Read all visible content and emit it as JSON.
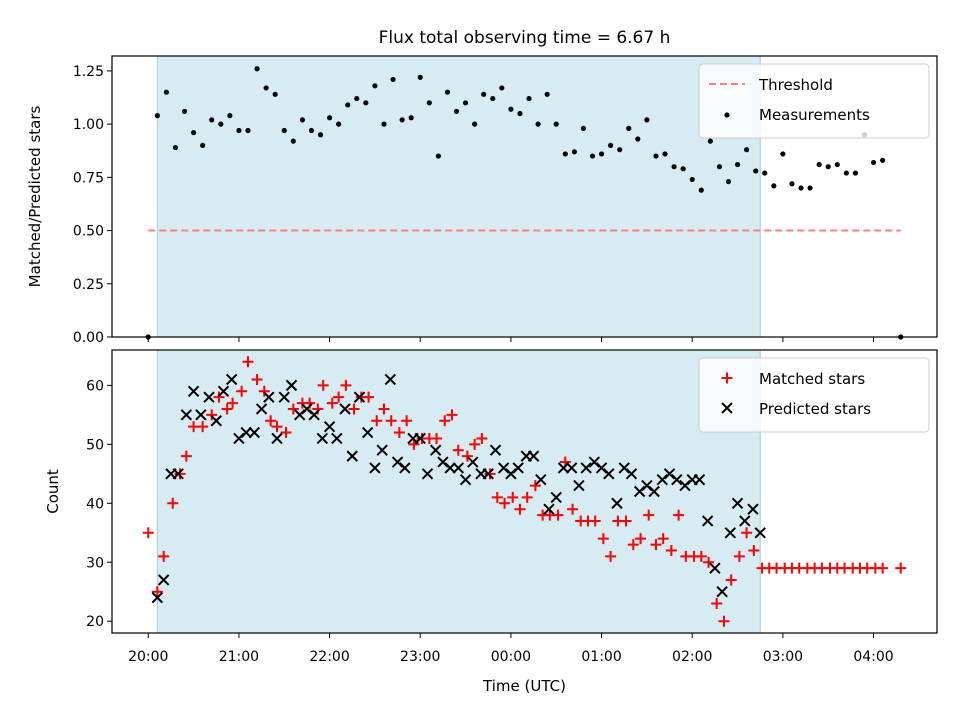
{
  "title": "Flux total observing time = 6.67 h",
  "chart_data": [
    {
      "type": "scatter",
      "ylabel": "Matched/Predicted stars",
      "ylim": [
        0,
        1.32
      ],
      "xlim_hours": [
        19.6,
        28.7
      ],
      "yticks": [
        0,
        0.25,
        0.5,
        0.75,
        1.0,
        1.25
      ],
      "ytick_labels": [
        "0.00",
        "0.25",
        "0.50",
        "0.75",
        "1.00",
        "1.25"
      ],
      "shaded_span_hours": [
        20.1,
        26.75
      ],
      "threshold": {
        "name": "Threshold",
        "value": 0.5,
        "x_range_hours": [
          20.0,
          28.3
        ],
        "color": "#ff7f7f"
      },
      "legend_position": "top-right",
      "series": [
        {
          "name": "Measurements",
          "color": "#000000",
          "marker": "dot",
          "x": [
            20.0,
            20.1,
            20.2,
            20.3,
            20.4,
            20.5,
            20.6,
            20.7,
            20.8,
            20.9,
            21.0,
            21.1,
            21.2,
            21.3,
            21.4,
            21.5,
            21.6,
            21.7,
            21.8,
            21.9,
            22.0,
            22.1,
            22.2,
            22.3,
            22.4,
            22.5,
            22.6,
            22.7,
            22.8,
            22.9,
            23.0,
            23.1,
            23.2,
            23.3,
            23.4,
            23.5,
            23.6,
            23.7,
            23.8,
            23.9,
            24.0,
            24.1,
            24.2,
            24.3,
            24.4,
            24.5,
            24.6,
            24.7,
            24.8,
            24.9,
            25.0,
            25.1,
            25.2,
            25.3,
            25.4,
            25.5,
            25.6,
            25.7,
            25.8,
            25.9,
            26.0,
            26.1,
            26.2,
            26.3,
            26.4,
            26.5,
            26.6,
            26.7,
            26.8,
            26.9,
            27.0,
            27.1,
            27.2,
            27.3,
            27.4,
            27.5,
            27.6,
            27.7,
            27.8,
            27.9,
            28.0,
            28.1,
            28.3
          ],
          "y": [
            0.0,
            1.04,
            1.15,
            0.89,
            1.06,
            0.96,
            0.9,
            1.02,
            1.0,
            1.04,
            0.97,
            0.97,
            1.26,
            1.17,
            1.14,
            0.97,
            0.92,
            1.02,
            0.97,
            0.95,
            1.03,
            1.0,
            1.09,
            1.12,
            1.1,
            1.18,
            1.0,
            1.21,
            1.02,
            1.03,
            1.22,
            1.1,
            0.85,
            1.15,
            1.06,
            1.1,
            1.0,
            1.14,
            1.12,
            1.17,
            1.07,
            1.05,
            1.12,
            1.0,
            1.14,
            1.0,
            0.86,
            0.87,
            0.98,
            0.85,
            0.86,
            0.9,
            0.88,
            0.98,
            0.93,
            1.02,
            0.85,
            0.86,
            0.8,
            0.79,
            0.74,
            0.69,
            0.92,
            0.8,
            0.73,
            0.81,
            0.88,
            0.78,
            0.77,
            0.71,
            0.86,
            0.72,
            0.7,
            0.7,
            0.81,
            0.8,
            0.81,
            0.77,
            0.77,
            0.95,
            0.82,
            0.83,
            0.0
          ]
        }
      ]
    },
    {
      "type": "scatter",
      "xlabel": "Time (UTC)",
      "ylabel": "Count",
      "ylim": [
        18,
        66
      ],
      "xlim_hours": [
        19.6,
        28.7
      ],
      "yticks": [
        20,
        30,
        40,
        50,
        60
      ],
      "ytick_labels": [
        "20",
        "30",
        "40",
        "50",
        "60"
      ],
      "xticks_hours": [
        20,
        21,
        22,
        23,
        24,
        25,
        26,
        27,
        28
      ],
      "xtick_labels": [
        "20:00",
        "21:00",
        "22:00",
        "23:00",
        "00:00",
        "01:00",
        "02:00",
        "03:00",
        "04:00"
      ],
      "shaded_span_hours": [
        20.1,
        26.75
      ],
      "legend_position": "top-right",
      "series": [
        {
          "name": "Matched stars",
          "color": "#ff0000",
          "marker": "plus",
          "x": [
            20.0,
            20.1,
            20.17,
            20.27,
            20.35,
            20.42,
            20.5,
            20.6,
            20.7,
            20.78,
            20.87,
            20.93,
            21.03,
            21.1,
            21.2,
            21.28,
            21.35,
            21.42,
            21.52,
            21.6,
            21.7,
            21.78,
            21.87,
            21.93,
            22.03,
            22.1,
            22.18,
            22.27,
            22.35,
            22.43,
            22.52,
            22.6,
            22.68,
            22.77,
            22.85,
            22.93,
            23.02,
            23.1,
            23.18,
            23.27,
            23.35,
            23.42,
            23.52,
            23.6,
            23.68,
            23.77,
            23.85,
            23.93,
            24.02,
            24.1,
            24.18,
            24.27,
            24.35,
            24.43,
            24.52,
            24.6,
            24.68,
            24.77,
            24.85,
            24.93,
            25.02,
            25.1,
            25.18,
            25.27,
            25.35,
            25.43,
            25.52,
            25.6,
            25.68,
            25.77,
            25.85,
            25.93,
            26.02,
            26.1,
            26.18,
            26.27,
            26.35,
            26.43,
            26.52,
            26.6,
            26.68,
            26.77,
            26.85,
            26.93,
            27.02,
            27.1,
            27.18,
            27.27,
            27.35,
            27.43,
            27.52,
            27.6,
            27.68,
            27.77,
            27.85,
            27.93,
            28.02,
            28.1,
            28.3
          ],
          "y": [
            35,
            25,
            31,
            40,
            45,
            48,
            53,
            53,
            55,
            58,
            56,
            57,
            59,
            64,
            61,
            59,
            54,
            53,
            52,
            56,
            57,
            57,
            56,
            60,
            57,
            58,
            60,
            56,
            58,
            58,
            54,
            56,
            54,
            52,
            54,
            50,
            51,
            51,
            51,
            54,
            55,
            49,
            48,
            50,
            51,
            45,
            41,
            40,
            41,
            39,
            41,
            43,
            38,
            38,
            38,
            47,
            39,
            37,
            37,
            37,
            34,
            31,
            37,
            37,
            33,
            34,
            38,
            33,
            34,
            32,
            38,
            31,
            31,
            31,
            30,
            23,
            20,
            27,
            31,
            35,
            32,
            29,
            29,
            29,
            29,
            29,
            29,
            29,
            29,
            29,
            29,
            29,
            29,
            29,
            29,
            29,
            29,
            29,
            29
          ]
        },
        {
          "name": "Predicted stars",
          "color": "#000000",
          "marker": "x",
          "x": [
            20.1,
            20.17,
            20.25,
            20.33,
            20.42,
            20.5,
            20.58,
            20.67,
            20.75,
            20.83,
            20.92,
            21.0,
            21.08,
            21.17,
            21.25,
            21.33,
            21.42,
            21.5,
            21.58,
            21.67,
            21.75,
            21.83,
            21.92,
            22.0,
            22.08,
            22.17,
            22.25,
            22.33,
            22.42,
            22.5,
            22.58,
            22.67,
            22.75,
            22.83,
            22.92,
            23.0,
            23.08,
            23.17,
            23.25,
            23.33,
            23.42,
            23.5,
            23.58,
            23.67,
            23.75,
            23.83,
            23.92,
            24.0,
            24.08,
            24.17,
            24.25,
            24.33,
            24.42,
            24.5,
            24.58,
            24.67,
            24.75,
            24.83,
            24.92,
            25.0,
            25.08,
            25.17,
            25.25,
            25.33,
            25.42,
            25.5,
            25.58,
            25.67,
            25.75,
            25.83,
            25.92,
            26.0,
            26.08,
            26.17,
            26.25,
            26.33,
            26.42,
            26.5,
            26.58,
            26.67,
            26.75
          ],
          "y": [
            24,
            27,
            45,
            45,
            55,
            59,
            55,
            58,
            54,
            59,
            61,
            51,
            52,
            52,
            56,
            58,
            51,
            58,
            60,
            55,
            56,
            55,
            51,
            53,
            51,
            56,
            48,
            58,
            52,
            46,
            49,
            61,
            47,
            46,
            51,
            51,
            45,
            49,
            47,
            46,
            46,
            44,
            47,
            45,
            45,
            49,
            46,
            45,
            46,
            48,
            48,
            44,
            39,
            41,
            46,
            46,
            43,
            46,
            47,
            46,
            45,
            40,
            46,
            45,
            42,
            43,
            42,
            44,
            45,
            44,
            43,
            44,
            44,
            37,
            29,
            25,
            35,
            40,
            37,
            39,
            35
          ]
        }
      ]
    }
  ]
}
